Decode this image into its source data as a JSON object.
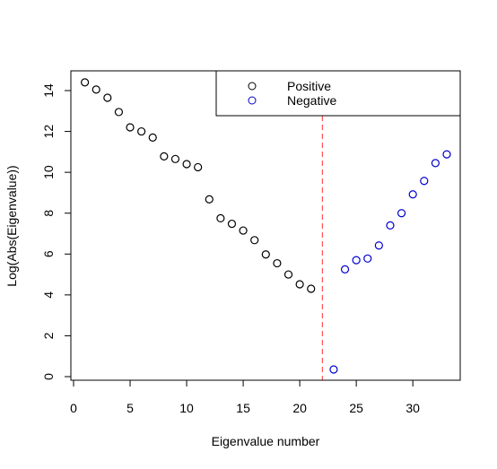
{
  "chart_data": {
    "type": "scatter",
    "title": "",
    "xlabel": "Eigenvalue number",
    "ylabel": "Log(Abs(Eigenvalue))",
    "xlim": [
      0,
      34
    ],
    "ylim": [
      0,
      14.6
    ],
    "xticks": [
      0,
      5,
      10,
      15,
      20,
      25,
      30
    ],
    "yticks": [
      0,
      2,
      4,
      6,
      8,
      10,
      12,
      14
    ],
    "xtick_labels": [
      "0",
      "5",
      "10",
      "15",
      "20",
      "25",
      "30"
    ],
    "ytick_labels": [
      "0",
      "2",
      "4",
      "6",
      "8",
      "10",
      "12",
      "14"
    ],
    "grid": false,
    "legend_position": "top-right",
    "reference_line": {
      "x": 22,
      "style": "dashed",
      "color": "#ff0000"
    },
    "series": [
      {
        "name": "Positive",
        "color": "#000000",
        "marker": "open-circle",
        "x": [
          1,
          2,
          3,
          4,
          5,
          6,
          7,
          8,
          9,
          10,
          11,
          12,
          13,
          14,
          15,
          16,
          17,
          18,
          19,
          20,
          21
        ],
        "y": [
          14.4,
          14.05,
          13.65,
          12.95,
          12.2,
          12.0,
          11.7,
          10.78,
          10.65,
          10.4,
          10.25,
          8.68,
          7.75,
          7.48,
          7.15,
          6.68,
          5.98,
          5.55,
          5.0,
          4.52,
          4.3
        ]
      },
      {
        "name": "Negative",
        "color": "#0000cd",
        "marker": "open-circle",
        "x": [
          23,
          24,
          25,
          26,
          27,
          28,
          29,
          30,
          31,
          32,
          33
        ],
        "y": [
          0.35,
          5.25,
          5.7,
          5.78,
          6.42,
          7.4,
          8.0,
          8.92,
          9.58,
          10.45,
          10.88
        ]
      }
    ]
  }
}
